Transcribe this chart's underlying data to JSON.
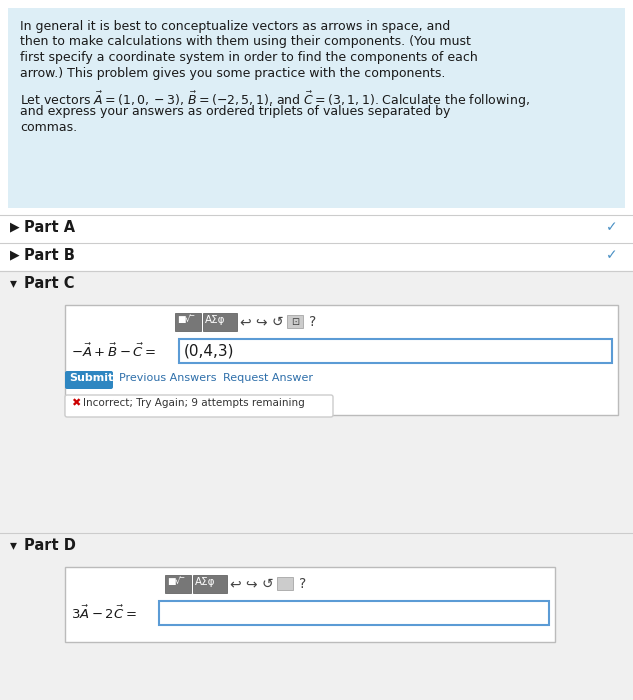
{
  "bg_color": "#ffffff",
  "header_bg": "#ddeef6",
  "separator_color": "#cccccc",
  "part_c_bg": "#f0f0f0",
  "part_d_bg": "#f0f0f0",
  "check_color": "#4a90c4",
  "submit_bg": "#2e86c1",
  "input_border_color": "#5b9bd5",
  "toolbar_bg": "#888888",
  "toolbar_bg2": "#999999",
  "incorrect_x_color": "#cc0000",
  "text_color": "#1a1a1a",
  "link_color": "#2e6faa",
  "header_lines": [
    "In general it is best to conceptualize vectors as arrows in space, and",
    "then to make calculations with them using their components. (You must",
    "first specify a coordinate system in order to find the components of each",
    "arrow.) This problem gives you some practice with the components."
  ],
  "header_math_line": "Let vectors $\\vec{A}=(1,0,-3)$, $\\vec{B}=(-2,5,1)$, and $\\vec{C}=(3,1,1)$. Calculate the following,",
  "header_math_line2": "and express your answers as ordered triplets of values separated by",
  "header_math_line3": "commas.",
  "part_a_label": "Part A",
  "part_b_label": "Part B",
  "part_c_label": "Part C",
  "part_d_label": "Part D",
  "part_c_eq": "$-\\vec{A}+\\vec{B}-\\vec{C}=$",
  "part_c_answer": "(0,4,3)",
  "part_d_eq": "$3\\vec{A}-2\\vec{C}=$",
  "submit_text": "Submit",
  "prev_answers_text": "Previous Answers",
  "req_answer_text": "Request Answer",
  "incorrect_msg": "Incorrect; Try Again; 9 attempts remaining",
  "font_size_body": 9.0,
  "font_size_part": 10.5,
  "font_size_small": 8.0
}
